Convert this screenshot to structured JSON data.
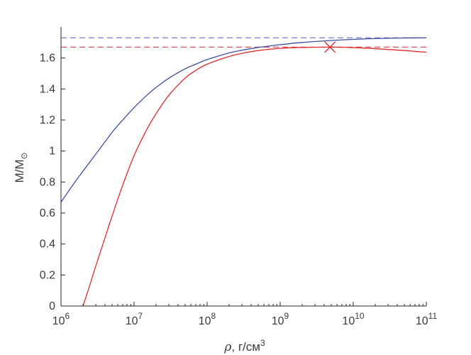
{
  "chart_data": {
    "type": "line",
    "xscale": "log",
    "xlim": [
      1000000,
      100000000000
    ],
    "ylim": [
      0,
      1.8
    ],
    "grid": false,
    "xlabel": {
      "symbol": "ρ",
      "text": ", г/см",
      "sup": "3"
    },
    "ylabel": {
      "main": "M/M",
      "sub": "⊙"
    },
    "xticks": [
      {
        "value": 1000000,
        "base": "10",
        "exp": "6"
      },
      {
        "value": 10000000,
        "base": "10",
        "exp": "7"
      },
      {
        "value": 100000000,
        "base": "10",
        "exp": "8"
      },
      {
        "value": 1000000000,
        "base": "10",
        "exp": "9"
      },
      {
        "value": 10000000000,
        "base": "10",
        "exp": "10"
      },
      {
        "value": 100000000000,
        "base": "10",
        "exp": "11"
      }
    ],
    "yticks": [
      {
        "value": 0,
        "label": "0"
      },
      {
        "value": 0.2,
        "label": "0.2"
      },
      {
        "value": 0.4,
        "label": "0.4"
      },
      {
        "value": 0.6,
        "label": "0.6"
      },
      {
        "value": 0.8,
        "label": "0.8"
      },
      {
        "value": 1,
        "label": "1"
      },
      {
        "value": 1.2,
        "label": "1.2"
      },
      {
        "value": 1.4,
        "label": "1.4"
      },
      {
        "value": 1.6,
        "label": "1.6"
      }
    ],
    "series": [
      {
        "color": "#3b4ea0",
        "x": [
          1000000,
          1500000,
          2000000,
          3000000,
          5000000,
          7000000,
          10000000,
          15000000,
          20000000,
          30000000,
          50000000,
          70000000,
          100000000,
          200000000,
          300000000,
          500000000,
          700000000,
          1000000000,
          2000000000,
          5000000000,
          10000000000,
          20000000000,
          50000000000,
          100000000000
        ],
        "y": [
          0.67,
          0.79,
          0.87,
          0.98,
          1.12,
          1.2,
          1.28,
          1.36,
          1.41,
          1.47,
          1.53,
          1.56,
          1.59,
          1.633,
          1.65,
          1.668,
          1.677,
          1.686,
          1.7,
          1.713,
          1.72,
          1.725,
          1.729,
          1.73
        ]
      },
      {
        "color": "#e02a2a",
        "x": [
          2000000,
          2500000,
          3000000,
          4000000,
          5000000,
          7000000,
          10000000,
          15000000,
          20000000,
          30000000,
          50000000,
          70000000,
          100000000,
          200000000,
          300000000,
          500000000,
          1000000000,
          2000000000,
          5000000000,
          10000000000,
          20000000000,
          50000000000,
          100000000000
        ],
        "y": [
          0,
          0.14,
          0.26,
          0.44,
          0.58,
          0.78,
          0.97,
          1.14,
          1.24,
          1.36,
          1.47,
          1.52,
          1.56,
          1.61,
          1.63,
          1.648,
          1.662,
          1.668,
          1.67,
          1.667,
          1.66,
          1.648,
          1.637
        ]
      }
    ],
    "reference_lines": [
      {
        "y": 1.73,
        "color": "#7080c8",
        "style": "dashed"
      },
      {
        "y": 1.67,
        "color": "#e0505a",
        "style": "dashed"
      }
    ],
    "markers": [
      {
        "x": 4800000000,
        "y": 1.67,
        "shape": "x",
        "color": "#e02a2a"
      }
    ]
  }
}
